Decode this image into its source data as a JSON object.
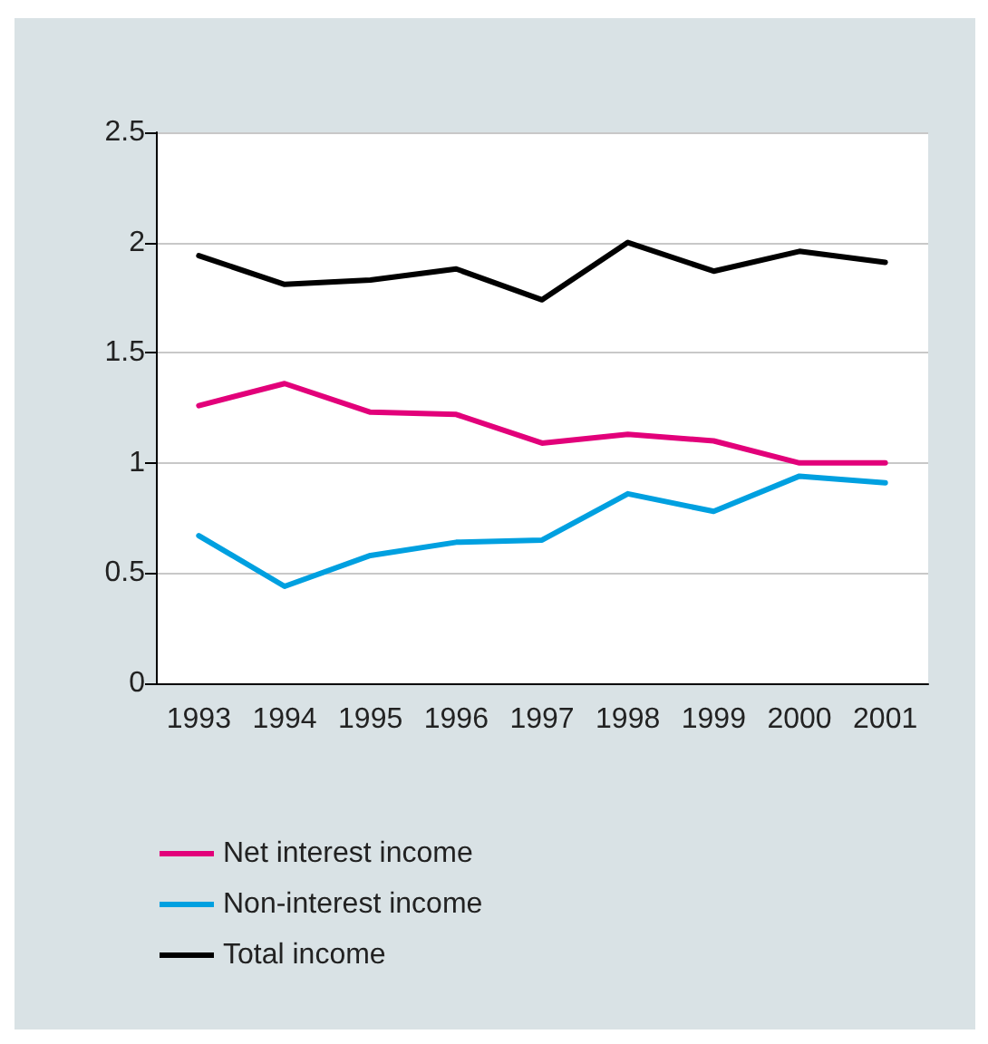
{
  "chart_data": {
    "type": "line",
    "categories": [
      "1993",
      "1994",
      "1995",
      "1996",
      "1997",
      "1998",
      "1999",
      "2000",
      "2001"
    ],
    "series": [
      {
        "name": "Net interest income",
        "color": "#e2007a",
        "values": [
          1.26,
          1.36,
          1.23,
          1.22,
          1.09,
          1.13,
          1.1,
          1.0,
          1.0
        ]
      },
      {
        "name": "Non-interest income",
        "color": "#00a0e0",
        "values": [
          0.67,
          0.44,
          0.58,
          0.64,
          0.65,
          0.86,
          0.78,
          0.94,
          0.91
        ]
      },
      {
        "name": "Total income",
        "color": "#000000",
        "values": [
          1.94,
          1.81,
          1.83,
          1.88,
          1.74,
          2.0,
          1.87,
          1.96,
          1.91
        ]
      }
    ],
    "ylim": [
      0,
      2.5
    ],
    "yticks": [
      0,
      0.5,
      1,
      1.5,
      2,
      2.5
    ],
    "grid": "y",
    "legend": "bottom left",
    "marker": "none",
    "line_style": "solid"
  }
}
